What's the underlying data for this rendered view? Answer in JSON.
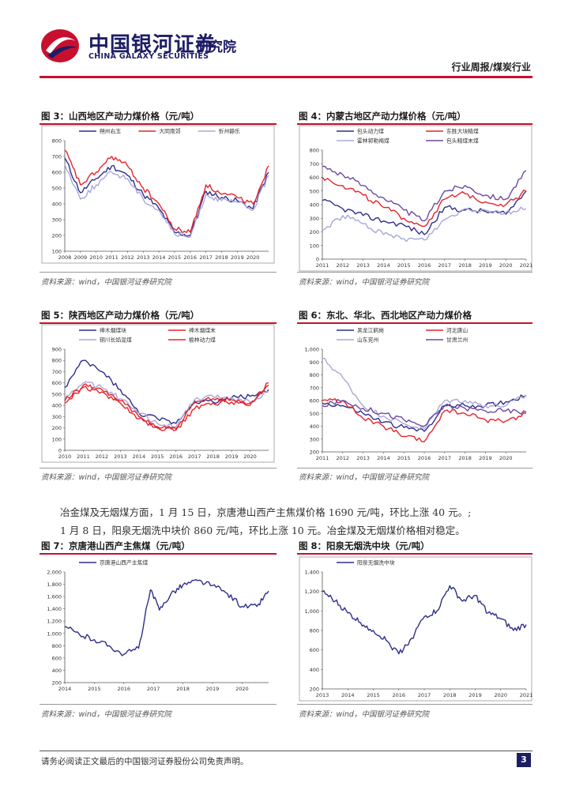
{
  "header": {
    "company_cn": "中国银河证券",
    "company_en": "CHINA GALAXY SECURITIES",
    "institute": "研究院",
    "category": "行业周报/煤炭行业"
  },
  "source_text": "资料来源：wind，中国银河证券研究院",
  "paragraphs": {
    "p1": "冶金煤及无烟煤方面，1 月 15 日，京唐港山西产主焦煤价格 1690 元/吨，环比上涨 40 元。;",
    "p2": "1 月 8 日，阳泉无烟洗中块价 860 元/吨，环比上涨 10 元。冶金煤及无烟煤价格相对稳定。"
  },
  "footer": {
    "disclaimer": "请务必阅读正文最后的中国银河证券股份公司免责声明。",
    "page": "3"
  },
  "colors": {
    "brand_red": "#c8102e",
    "brand_blue": "#1d1d66",
    "navy": "#2e2e8c",
    "red": "#e8232b",
    "lavender": "#a8a8d8",
    "purple": "#6b4aa0"
  },
  "chart_data": [
    {
      "id": "fig3",
      "type": "line",
      "title": "图 3：山西地区产动力煤价格（元/吨）",
      "x": [
        2008,
        2009,
        2010,
        2011,
        2012,
        2013,
        2014,
        2015,
        2016,
        2017,
        2018,
        2019,
        2020,
        2021
      ],
      "xticks": [
        "2008",
        "2009",
        "2010",
        "2011",
        "2012",
        "2013",
        "2014",
        "2015",
        "2016",
        "2017",
        "2018",
        "2019",
        "2020"
      ],
      "ylim": [
        100,
        800
      ],
      "yticks": [
        "100",
        "200",
        "300",
        "400",
        "500",
        "600",
        "700",
        "800"
      ],
      "series": [
        {
          "name": "朔州右玉",
          "color": "#2e2e8c",
          "values": [
            690,
            470,
            560,
            640,
            580,
            460,
            370,
            220,
            200,
            480,
            440,
            420,
            370,
            600
          ]
        },
        {
          "name": "大同南郊",
          "color": "#e8232b",
          "values": [
            740,
            520,
            600,
            700,
            640,
            500,
            400,
            240,
            220,
            520,
            460,
            440,
            400,
            640
          ]
        },
        {
          "name": "忻州静乐",
          "color": "#a8a8d8",
          "values": [
            650,
            430,
            520,
            600,
            560,
            430,
            360,
            210,
            190,
            460,
            420,
            410,
            360,
            580
          ]
        }
      ]
    },
    {
      "id": "fig4",
      "type": "line",
      "title": "图 4：内蒙古地区产动力煤价格（元/吨）",
      "x": [
        2011,
        2012,
        2013,
        2014,
        2015,
        2016,
        2017,
        2018,
        2019,
        2020,
        2021
      ],
      "xticks": [
        "2011",
        "2012",
        "2013",
        "2014",
        "2015",
        "2016",
        "2017",
        "2018",
        "2019",
        "2020",
        "2021"
      ],
      "ylim": [
        0,
        800
      ],
      "yticks": [
        "0",
        "100",
        "200",
        "300",
        "400",
        "500",
        "600",
        "700",
        "800"
      ],
      "series": [
        {
          "name": "包头动力煤",
          "color": "#2e2e8c",
          "values": [
            430,
            370,
            320,
            280,
            250,
            180,
            380,
            360,
            350,
            330,
            500
          ]
        },
        {
          "name": "东胜大块精煤",
          "color": "#e8232b",
          "values": [
            600,
            540,
            470,
            380,
            300,
            240,
            440,
            480,
            420,
            400,
            500
          ]
        },
        {
          "name": "霍林郭勒褐煤",
          "color": "#a8a8d8",
          "values": [
            210,
            320,
            260,
            180,
            150,
            140,
            290,
            370,
            360,
            340,
            370
          ]
        },
        {
          "name": "包头精煤末煤",
          "color": "#6b4aa0",
          "values": [
            680,
            620,
            540,
            450,
            360,
            280,
            500,
            540,
            470,
            440,
            650
          ]
        }
      ]
    },
    {
      "id": "fig5",
      "type": "line",
      "title": "图 5：陕西地区产动力煤价格（元/吨）",
      "x": [
        2010,
        2011,
        2012,
        2013,
        2014,
        2015,
        2016,
        2017,
        2018,
        2019,
        2020,
        2021
      ],
      "xticks": [
        "2010",
        "2011",
        "2012",
        "2013",
        "2014",
        "2015",
        "2016",
        "2017",
        "2018",
        "2019",
        "2020"
      ],
      "ylim": [
        0,
        900
      ],
      "yticks": [
        "0",
        "100",
        "200",
        "300",
        "400",
        "500",
        "600",
        "700",
        "800",
        "900"
      ],
      "series": [
        {
          "name": "神木烟煤块",
          "color": "#2e2e8c",
          "values": [
            560,
            800,
            700,
            540,
            330,
            280,
            240,
            440,
            430,
            470,
            480,
            540
          ]
        },
        {
          "name": "神木烟煤末",
          "color": "#e8232b",
          "values": [
            420,
            560,
            520,
            420,
            280,
            200,
            180,
            370,
            420,
            430,
            400,
            600
          ]
        },
        {
          "name": "铜川长焰混煤",
          "color": "#a8a8d8",
          "values": [
            460,
            600,
            560,
            460,
            330,
            240,
            210,
            450,
            480,
            470,
            430,
            520
          ]
        },
        {
          "name": "榆林动力煤",
          "color": "#e8232b",
          "values": [
            440,
            580,
            540,
            440,
            300,
            210,
            190,
            420,
            460,
            450,
            420,
            580
          ]
        }
      ]
    },
    {
      "id": "fig6",
      "type": "line",
      "title": "图 6：东北、华北、西北地区产动力煤价格",
      "x": [
        2011,
        2012,
        2013,
        2014,
        2015,
        2016,
        2017,
        2018,
        2019,
        2020,
        2021
      ],
      "xticks": [
        "2011",
        "2012",
        "2013",
        "2014",
        "2015",
        "2016",
        "2017",
        "2018",
        "2019",
        "2020"
      ],
      "ylim": [
        200,
        1000
      ],
      "yticks": [
        "200",
        "300",
        "400",
        "500",
        "600",
        "700",
        "800",
        "900",
        "1,000"
      ],
      "series": [
        {
          "name": "黑龙江鹤岗",
          "color": "#2e2e8c",
          "values": [
            580,
            560,
            500,
            430,
            390,
            360,
            560,
            560,
            560,
            590,
            640
          ]
        },
        {
          "name": "河北唐山",
          "color": "#e8232b",
          "values": [
            600,
            600,
            460,
            400,
            320,
            280,
            520,
            500,
            450,
            440,
            500
          ]
        },
        {
          "name": "山东兖州",
          "color": "#a8a8d8",
          "values": [
            930,
            780,
            560,
            480,
            420,
            380,
            600,
            600,
            560,
            560,
            640
          ]
        },
        {
          "name": "甘肃兰州",
          "color": "#6b4aa0",
          "values": [
            560,
            600,
            540,
            500,
            450,
            400,
            560,
            540,
            520,
            520,
            510
          ]
        }
      ]
    },
    {
      "id": "fig7",
      "type": "line",
      "title": "图 7：京唐港山西产主焦煤（元/吨）",
      "x": [
        2014,
        2014.5,
        2015,
        2015.5,
        2016,
        2016.5,
        2016.9,
        2017.2,
        2017.6,
        2018,
        2018.5,
        2019,
        2019.5,
        2020,
        2020.5,
        2020.9
      ],
      "xticks": [
        "2014",
        "2015",
        "2016",
        "2017",
        "2018",
        "2019",
        "2020"
      ],
      "ylim": [
        200,
        2000
      ],
      "yticks": [
        "200",
        "400",
        "600",
        "800",
        "1,000",
        "1,200",
        "1,400",
        "1,600",
        "1,800",
        "2,000"
      ],
      "series": [
        {
          "name": "京唐港山西产主焦煤",
          "color": "#2e2e8c",
          "values": [
            1110,
            980,
            900,
            800,
            660,
            760,
            1710,
            1380,
            1650,
            1790,
            1860,
            1780,
            1650,
            1440,
            1440,
            1690
          ]
        }
      ]
    },
    {
      "id": "fig8",
      "type": "line",
      "title": "图 8：阳泉无烟洗中块（元/吨）",
      "x": [
        2013,
        2013.5,
        2014,
        2014.5,
        2015,
        2015.5,
        2016,
        2016.5,
        2017,
        2017.5,
        2018,
        2018.5,
        2019,
        2019.5,
        2020,
        2020.5,
        2021
      ],
      "xticks": [
        "2013",
        "2014",
        "2015",
        "2016",
        "2017",
        "2018",
        "2019",
        "2020",
        "2021"
      ],
      "ylim": [
        200,
        1400
      ],
      "yticks": [
        "200",
        "400",
        "600",
        "800",
        "1,000",
        "1,200",
        "1,400"
      ],
      "series": [
        {
          "name": "阳泉无烟洗中块",
          "color": "#2e2e8c",
          "values": [
            1200,
            1100,
            980,
            880,
            800,
            700,
            560,
            720,
            940,
            1000,
            1260,
            1100,
            1160,
            980,
            920,
            800,
            860
          ]
        }
      ]
    }
  ]
}
